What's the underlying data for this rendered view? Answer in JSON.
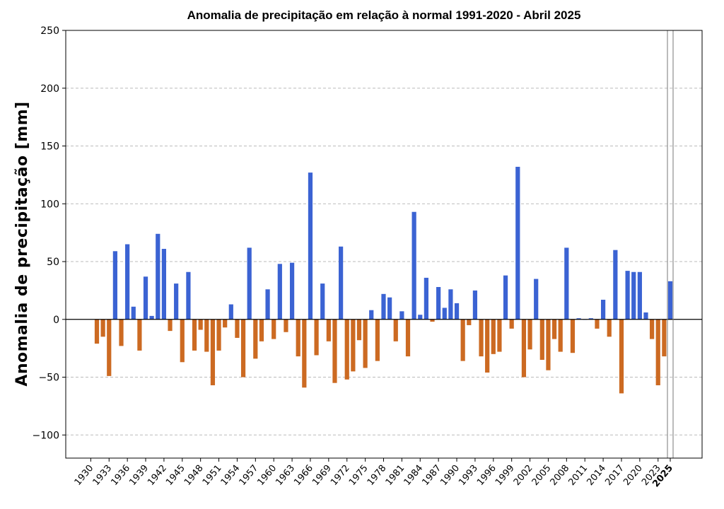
{
  "chart_data": {
    "type": "bar",
    "title": "Anomalia de precipitação em relação à normal 1991-2020 - Abril 2025",
    "xlabel": "",
    "ylabel": "Anomalia de precipitação [mm]",
    "ylim": [
      -120,
      250
    ],
    "yticks": [
      -100,
      -50,
      0,
      50,
      100,
      150,
      200,
      250
    ],
    "grid": true,
    "colors": {
      "positive": "#3b63d3",
      "negative": "#cc6a22",
      "zero_line": "#000000",
      "grid": "#bbbbbb"
    },
    "tick_labels": [
      "1930",
      "1933",
      "1936",
      "1939",
      "1942",
      "1945",
      "1948",
      "1951",
      "1954",
      "1957",
      "1960",
      "1963",
      "1966",
      "1969",
      "1972",
      "1975",
      "1978",
      "1981",
      "1984",
      "1987",
      "1990",
      "1993",
      "1996",
      "1999",
      "2002",
      "2005",
      "2008",
      "2011",
      "2014",
      "2017",
      "2020",
      "2023",
      "2025"
    ],
    "highlight_label": "2025",
    "start_year": 1930,
    "values": [
      0,
      -21,
      -15,
      -49,
      59,
      -23,
      65,
      11,
      -27,
      37,
      3,
      74,
      61,
      -10,
      31,
      -37,
      41,
      -27,
      -9,
      -28,
      -57,
      -27,
      -7,
      13,
      -16,
      -50,
      62,
      -34,
      -19,
      26,
      -17,
      48,
      -11,
      49,
      -32,
      -59,
      127,
      -31,
      31,
      -19,
      -55,
      63,
      -52,
      -45,
      -18,
      -42,
      8,
      -36,
      22,
      19,
      -19,
      7,
      -32,
      93,
      4,
      36,
      -2,
      28,
      10,
      26,
      14,
      -36,
      -5,
      25,
      -32,
      -46,
      -30,
      -28,
      38,
      -8,
      132,
      -50,
      -26,
      35,
      -35,
      -44,
      -17,
      -28,
      62,
      -29,
      1,
      0,
      1,
      -8,
      17,
      -15,
      60,
      -64,
      42,
      41,
      41,
      6,
      -17,
      -57,
      -32,
      33
    ]
  }
}
